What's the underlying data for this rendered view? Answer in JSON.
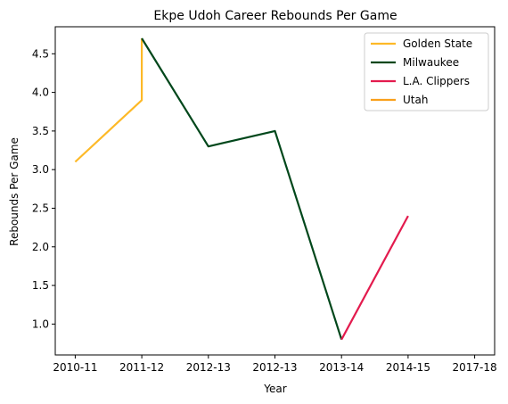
{
  "chart_data": {
    "type": "line",
    "title": "Ekpe Udoh Career Rebounds Per Game",
    "xlabel": "Year",
    "ylabel": "Rebounds Per Game",
    "x_ticks": [
      {
        "pos": 0,
        "label": "2010-11"
      },
      {
        "pos": 1,
        "label": "2011-12"
      },
      {
        "pos": 2,
        "label": "2012-13"
      },
      {
        "pos": 3,
        "label": "2012-13"
      },
      {
        "pos": 4,
        "label": "2013-14"
      },
      {
        "pos": 5,
        "label": "2014-15"
      },
      {
        "pos": 6,
        "label": "2017-18"
      }
    ],
    "xlim": [
      -0.3,
      6.3
    ],
    "ylim": [
      0.6,
      4.85
    ],
    "y_ticks": [
      1.0,
      1.5,
      2.0,
      2.5,
      3.0,
      3.5,
      4.0,
      4.5
    ],
    "grid": false,
    "legend": "top-right",
    "series": [
      {
        "name": "Golden State",
        "color": "#FDB927",
        "x": [
          0,
          1.0,
          1.0
        ],
        "y": [
          3.1,
          3.9,
          4.7
        ]
      },
      {
        "name": "Milwaukee",
        "color": "#00471B",
        "x": [
          1.0,
          2.0,
          3.0,
          4.0
        ],
        "y": [
          4.7,
          3.3,
          3.5,
          0.8
        ]
      },
      {
        "name": "L.A. Clippers",
        "color": "#E31B4E",
        "x": [
          4.0,
          5.0
        ],
        "y": [
          0.8,
          2.4
        ]
      },
      {
        "name": "Utah",
        "color": "#F9A01B",
        "x": [],
        "y": []
      }
    ]
  }
}
